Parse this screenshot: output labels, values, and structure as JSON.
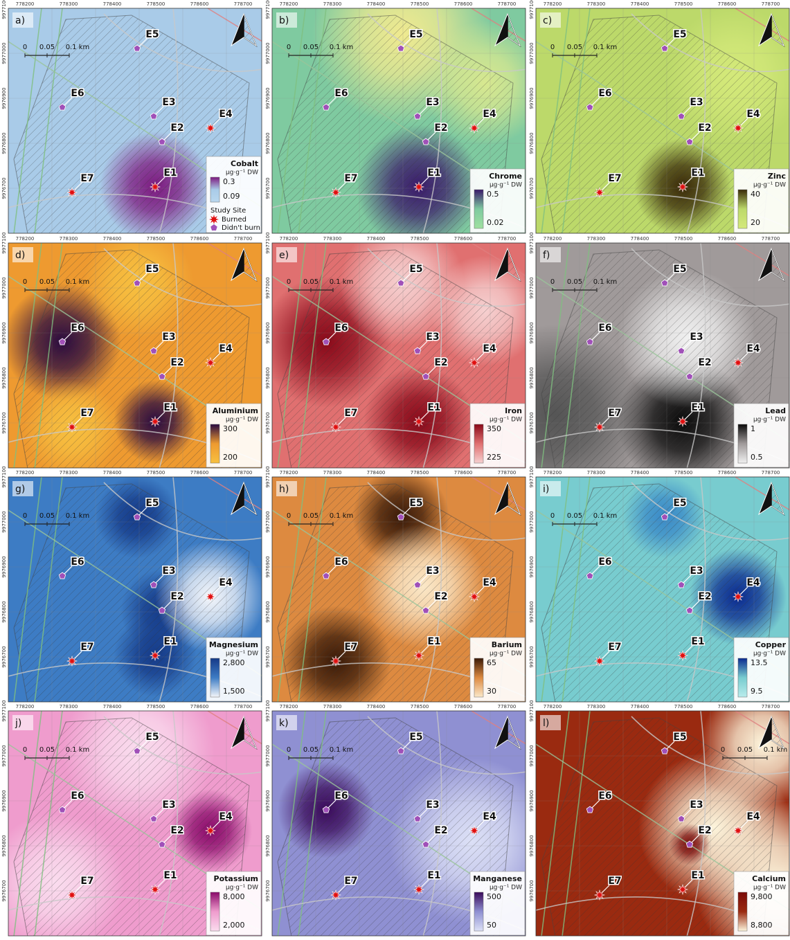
{
  "x_ticks": [
    "778200",
    "778300",
    "778400",
    "778500",
    "778600",
    "778700"
  ],
  "y_ticks": [
    "9976700",
    "9976800",
    "9976900",
    "9977000",
    "9977100"
  ],
  "scale_bar": [
    "0",
    "0.05",
    "0.1 km"
  ],
  "study_site_legend": {
    "title": "Study Site",
    "burned": "Burned",
    "unburned": "Didn't burn"
  },
  "sites": [
    {
      "label": "E1",
      "status": "burned"
    },
    {
      "label": "E2",
      "status": "unburned"
    },
    {
      "label": "E3",
      "status": "unburned"
    },
    {
      "label": "E4",
      "status": "burned"
    },
    {
      "label": "E5",
      "status": "unburned"
    },
    {
      "label": "E6",
      "status": "unburned"
    },
    {
      "label": "E7",
      "status": "burned"
    }
  ],
  "panels": [
    {
      "letter": "a)",
      "element": "Cobalt",
      "unit": "µg·g⁻¹ DW",
      "max": "0.3",
      "min": "0.09",
      "ramp": [
        "#7d1a80",
        "#b9d7ee"
      ],
      "base": "#a9cbe8"
    },
    {
      "letter": "b)",
      "element": "Chrome",
      "unit": "µg·g⁻¹ DW",
      "max": "0.5",
      "min": "0.02",
      "ramp": [
        "#3a1a6a",
        "#9fe0a0"
      ],
      "base": "#7fcaa0"
    },
    {
      "letter": "c)",
      "element": "Zinc",
      "unit": "µg·g⁻¹ DW",
      "max": "40",
      "min": "20",
      "ramp": [
        "#3a2a08",
        "#d4e97a"
      ],
      "base": "#bcd96a"
    },
    {
      "letter": "d)",
      "element": "Aluminium",
      "unit": "µg·g⁻¹ DW",
      "max": "300",
      "min": "200",
      "ramp": [
        "#2a0a40",
        "#f7c040"
      ],
      "base": "#ee9a30"
    },
    {
      "letter": "e)",
      "element": "Iron",
      "unit": "µg·g⁻¹ DW",
      "max": "350",
      "min": "225",
      "ramp": [
        "#8a0a1a",
        "#f6d0d0"
      ],
      "base": "#e07070"
    },
    {
      "letter": "f)",
      "element": "Lead",
      "unit": "µg·g⁻¹ DW",
      "max": "1",
      "min": "0.5",
      "ramp": [
        "#0a0a0a",
        "#f0f0f0"
      ],
      "base": "#a09a9a"
    },
    {
      "letter": "g)",
      "element": "Magnesium",
      "unit": "µg·g⁻¹ DW",
      "max": "2,800",
      "min": "1,500",
      "ramp": [
        "#153a88",
        "#f4f6fa"
      ],
      "base": "#3d7cc4"
    },
    {
      "letter": "h)",
      "element": "Barium",
      "unit": "µg·g⁻¹ DW",
      "max": "65",
      "min": "30",
      "ramp": [
        "#3a1a08",
        "#fbe8c8"
      ],
      "base": "#dd8a40"
    },
    {
      "letter": "i)",
      "element": "Copper",
      "unit": "µg·g⁻¹ DW",
      "max": "13.5",
      "min": "9.5",
      "ramp": [
        "#0a2a90",
        "#b8ecec"
      ],
      "base": "#78cccf"
    },
    {
      "letter": "j)",
      "element": "Potassium",
      "unit": "µg·g⁻¹ DW",
      "max": "8,000",
      "min": "2,000",
      "ramp": [
        "#8a0a6a",
        "#fadcee"
      ],
      "base": "#ef9ccd"
    },
    {
      "letter": "k)",
      "element": "Manganese",
      "unit": "µg·g⁻¹ DW",
      "max": "500",
      "min": "50",
      "ramp": [
        "#3a0a5a",
        "#dce0f6"
      ],
      "base": "#8f90d2"
    },
    {
      "letter": "l)",
      "element": "Calcium",
      "unit": "µg·g⁻¹ DW",
      "max": "9,800",
      "min": "8,800",
      "ramp": [
        "#7a0a08",
        "#fdf5dc"
      ],
      "base": "#9a2a10"
    }
  ]
}
